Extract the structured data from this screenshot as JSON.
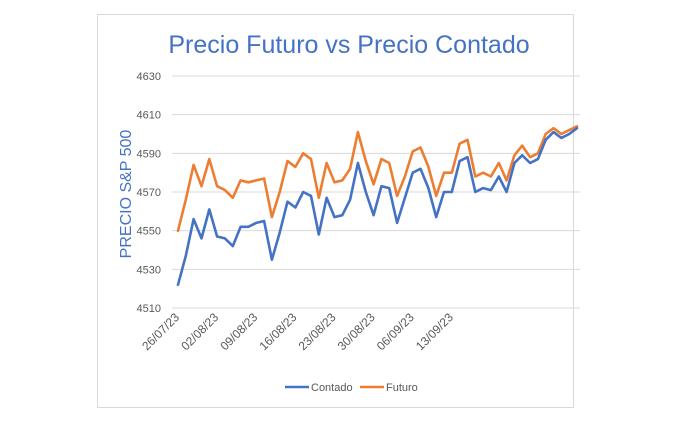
{
  "chart_data": {
    "type": "line",
    "title": "Precio Futuro vs Precio Contado",
    "xlabel": "",
    "ylabel": "PRECIO S&P 500",
    "ylim": [
      4510,
      4630
    ],
    "yticks": [
      4510,
      4530,
      4550,
      4570,
      4590,
      4610,
      4630
    ],
    "grid": true,
    "legend_position": "bottom",
    "x_tick_labels": [
      "26/07/23",
      "02/08/23",
      "09/08/23",
      "16/08/23",
      "23/08/23",
      "30/08/23",
      "06/09/23",
      "13/09/23"
    ],
    "x_tick_indices": [
      0,
      5,
      10,
      15,
      20,
      25,
      30,
      35
    ],
    "series": [
      {
        "name": "Contado",
        "color": "#4472c4",
        "values": [
          4522,
          4537,
          4556,
          4546,
          4561,
          4547,
          4546,
          4542,
          4552,
          4552,
          4554,
          4555,
          4535,
          4549,
          4565,
          4562,
          4570,
          4568,
          4548,
          4567,
          4557,
          4558,
          4566,
          4585,
          4570,
          4558,
          4573,
          4572,
          4554,
          4567,
          4580,
          4582,
          4572,
          4557,
          4570,
          4570,
          4586,
          4588,
          4570,
          4572,
          4571,
          4578,
          4570,
          4585,
          4589,
          4585,
          4587,
          4597,
          4601,
          4598,
          4600,
          4603
        ]
      },
      {
        "name": "Futuro",
        "color": "#ed7d31",
        "values": [
          4550,
          4566,
          4584,
          4573,
          4587,
          4573,
          4571,
          4567,
          4576,
          4575,
          4576,
          4577,
          4557,
          4570,
          4586,
          4583,
          4590,
          4587,
          4567,
          4585,
          4575,
          4576,
          4582,
          4601,
          4586,
          4574,
          4587,
          4585,
          4568,
          4578,
          4591,
          4593,
          4583,
          4568,
          4580,
          4580,
          4595,
          4597,
          4578,
          4580,
          4578,
          4585,
          4576,
          4589,
          4594,
          4588,
          4590,
          4600,
          4603,
          4600,
          4602,
          4604
        ]
      }
    ]
  }
}
